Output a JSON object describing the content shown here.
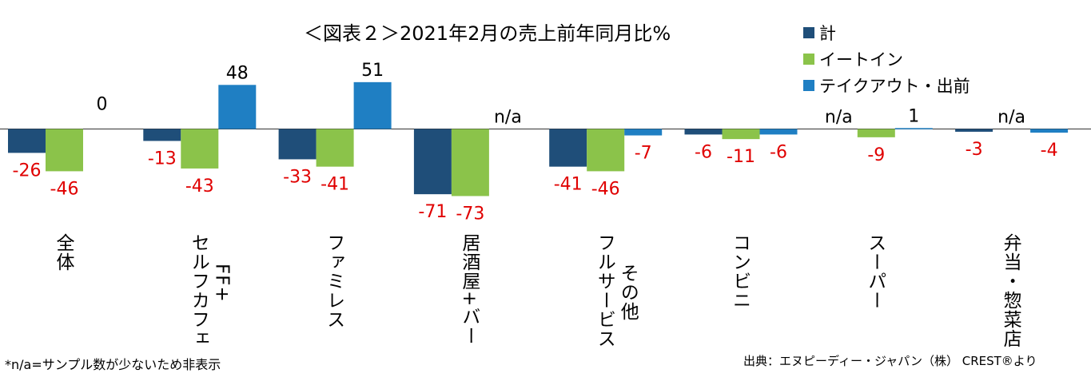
{
  "chart_data": {
    "type": "bar",
    "title": "＜図表２＞2021年2月の売上前年同月比%",
    "categories": [
      "全体",
      "セルフカフェ",
      "ファミレス",
      "居酒屋+バー",
      "フルサービス",
      "コンビニ",
      "スーパー",
      "弁当・惣菜店"
    ],
    "category_sublabels": [
      "",
      "FF+",
      "",
      "",
      "その他",
      "",
      "",
      ""
    ],
    "series": [
      {
        "name": "計",
        "color": "#1f4e79",
        "values": [
          -26,
          -13,
          -33,
          -71,
          -41,
          -6,
          null,
          -3
        ]
      },
      {
        "name": "イートイン",
        "color": "#8bc34a",
        "values": [
          -46,
          -43,
          -41,
          -73,
          -46,
          -11,
          -9,
          null
        ]
      },
      {
        "name": "テイクアウト・出前",
        "color": "#1f7fc3",
        "values": [
          0,
          48,
          51,
          null,
          -7,
          -6,
          1,
          -4
        ]
      }
    ],
    "na_label": "n/a",
    "legend_position": "top-right",
    "grid": false
  },
  "footnote": "*n/a=サンプル数が少ないため非表示",
  "source": "出典：エヌピーディー・ジャパン（株） CREST®より"
}
